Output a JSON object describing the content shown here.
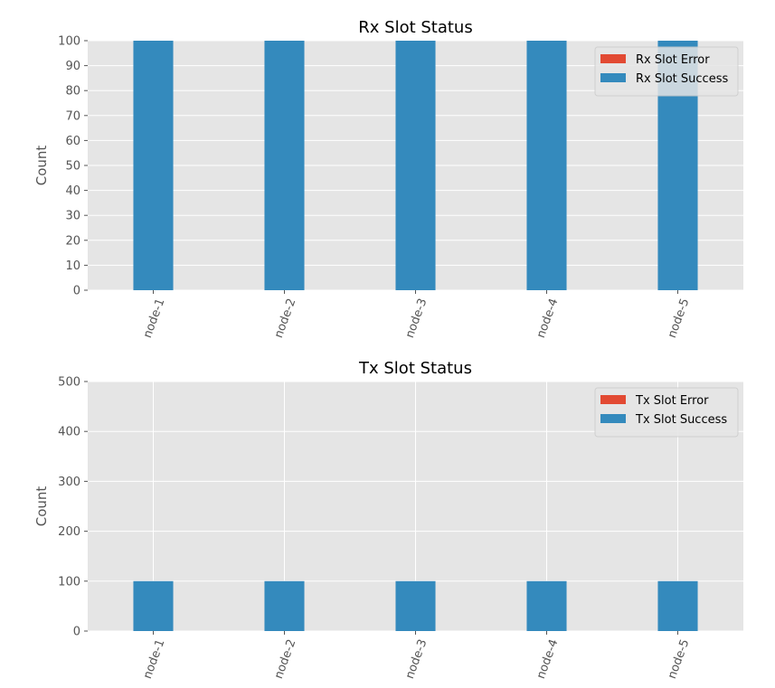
{
  "chart_data": [
    {
      "type": "bar",
      "title": "Rx Slot Status",
      "xlabel": "",
      "ylabel": "Count",
      "ylim": [
        0,
        100
      ],
      "yticks": [
        0,
        10,
        20,
        30,
        40,
        50,
        60,
        70,
        80,
        90,
        100
      ],
      "categories": [
        "node-1",
        "node-2",
        "node-3",
        "node-4",
        "node-5"
      ],
      "stacked": true,
      "series": [
        {
          "name": "Rx Slot Error",
          "values": [
            0,
            0,
            0,
            0,
            0
          ],
          "color": "#E24A33"
        },
        {
          "name": "Rx Slot Success",
          "values": [
            100,
            100,
            100,
            100,
            100
          ],
          "color": "#348ABD"
        }
      ],
      "legend_position": "top-right",
      "grid": true
    },
    {
      "type": "bar",
      "title": "Tx Slot Status",
      "xlabel": "",
      "ylabel": "Count",
      "ylim": [
        0,
        500
      ],
      "yticks": [
        0,
        100,
        200,
        300,
        400,
        500
      ],
      "categories": [
        "node-1",
        "node-2",
        "node-3",
        "node-4",
        "node-5"
      ],
      "stacked": true,
      "series": [
        {
          "name": "Tx Slot Error",
          "values": [
            0,
            0,
            0,
            0,
            0
          ],
          "color": "#E24A33"
        },
        {
          "name": "Tx Slot Success",
          "values": [
            100,
            100,
            100,
            100,
            100
          ],
          "color": "#348ABD"
        }
      ],
      "legend_position": "top-right",
      "grid": true
    }
  ]
}
